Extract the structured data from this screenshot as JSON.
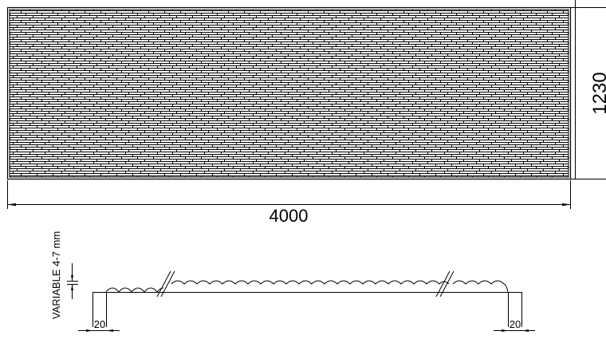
{
  "panel": {
    "width_label": "4000",
    "height_label": "1230"
  },
  "section": {
    "thickness_label": "VARIABLE 4-7 mm",
    "left_edge_label": "20",
    "right_edge_label": "20"
  },
  "colors": {
    "line": "#000000",
    "background": "#ffffff"
  }
}
